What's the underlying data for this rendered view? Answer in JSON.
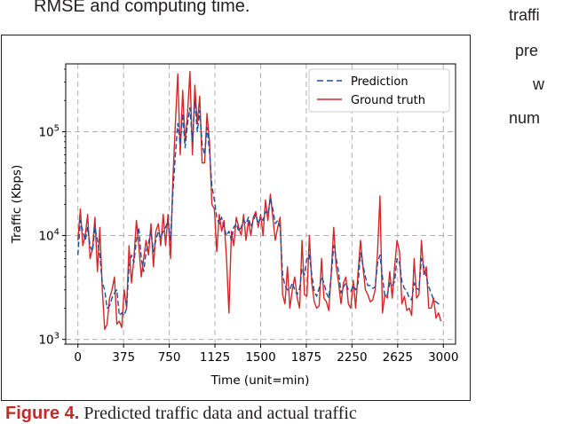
{
  "page": {
    "top_text": "RMSE and computing time.",
    "side_text": [
      "traffi",
      "pre",
      "w",
      "num"
    ],
    "caption_label": "Figure 4.",
    "caption_text": "Predicted traffic data and actual traffic"
  },
  "colors": {
    "prediction": "#1f4e9c",
    "ground_truth": "#d62728",
    "grid": "#b0b0b0",
    "caption_label": "#c42a27"
  },
  "chart_data": {
    "type": "line",
    "xlabel": "Time (unit=min)",
    "ylabel": "Traffic (Kbps)",
    "x_ticks": [
      "0",
      "375",
      "750",
      "1125",
      "1500",
      "1875",
      "2250",
      "2625",
      "3000"
    ],
    "y_ticks": [
      "10^3",
      "10^4",
      "10^5"
    ],
    "xlim": [
      -100,
      3100
    ],
    "ylim": [
      900,
      450000
    ],
    "yscale": "log",
    "grid": true,
    "legend_position": "top-right",
    "series": [
      {
        "name": "Prediction",
        "style": "dashed",
        "x": [
          0,
          20,
          40,
          60,
          80,
          100,
          120,
          140,
          160,
          180,
          200,
          220,
          240,
          260,
          280,
          300,
          320,
          340,
          360,
          380,
          400,
          420,
          440,
          460,
          480,
          500,
          520,
          540,
          560,
          580,
          600,
          620,
          640,
          660,
          680,
          700,
          720,
          740,
          760,
          780,
          800,
          820,
          840,
          860,
          880,
          900,
          920,
          940,
          960,
          980,
          1000,
          1020,
          1040,
          1060,
          1080,
          1100,
          1120,
          1140,
          1160,
          1180,
          1200,
          1220,
          1240,
          1260,
          1280,
          1300,
          1320,
          1340,
          1360,
          1380,
          1400,
          1420,
          1440,
          1460,
          1480,
          1500,
          1520,
          1540,
          1560,
          1580,
          1600,
          1620,
          1640,
          1660,
          1680,
          1700,
          1720,
          1740,
          1760,
          1780,
          1800,
          1820,
          1840,
          1860,
          1880,
          1900,
          1920,
          1940,
          1960,
          1980,
          2000,
          2020,
          2040,
          2060,
          2080,
          2100,
          2120,
          2140,
          2160,
          2180,
          2200,
          2220,
          2240,
          2260,
          2280,
          2300,
          2320,
          2340,
          2360,
          2380,
          2400,
          2420,
          2440,
          2460,
          2480,
          2500,
          2520,
          2540,
          2560,
          2580,
          2600,
          2620,
          2640,
          2660,
          2680,
          2700,
          2720,
          2740,
          2760,
          2780,
          2800,
          2820,
          2840,
          2860,
          2880,
          2900,
          2920,
          2940,
          2960,
          2980
        ],
        "y": [
          6500,
          14000,
          11000,
          9000,
          12000,
          8000,
          7000,
          12000,
          9000,
          6500,
          3500,
          3000,
          2000,
          2100,
          2500,
          2800,
          3000,
          1700,
          1800,
          1700,
          2000,
          5000,
          6500,
          5500,
          9000,
          12000,
          6000,
          4500,
          7000,
          8500,
          11000,
          7000,
          9000,
          11000,
          9500,
          11000,
          12000,
          14000,
          9000,
          26000,
          60000,
          120000,
          75000,
          150000,
          70000,
          120000,
          170000,
          80000,
          200000,
          100000,
          160000,
          75000,
          60000,
          110000,
          65000,
          30000,
          22000,
          15000,
          13000,
          15000,
          12000,
          10000,
          11000,
          9000,
          12000,
          13000,
          11000,
          12000,
          14000,
          13000,
          15000,
          12000,
          14000,
          16000,
          13000,
          15000,
          14000,
          17000,
          16000,
          23000,
          18000,
          13000,
          14000,
          12000,
          4200,
          3300,
          3000,
          3000,
          3500,
          3000,
          2700,
          3100,
          4800,
          4200,
          6000,
          6500,
          4200,
          2900,
          2600,
          3100,
          4000,
          3500,
          2800,
          2500,
          4200,
          8000,
          6000,
          4500,
          2800,
          3200,
          3500,
          3000,
          2900,
          3300,
          3000,
          3500,
          6800,
          5200,
          4000,
          3300,
          3300,
          3100,
          3200,
          5500,
          6500,
          4000,
          2600,
          2700,
          3500,
          3300,
          3600,
          6000,
          5500,
          3600,
          3100,
          2900,
          2500,
          2400,
          3500,
          3100,
          3000,
          6000,
          5000,
          4000,
          3200,
          2800,
          2400,
          2300,
          2200,
          2100
        ],
        "color": "#1f4e9c"
      },
      {
        "name": "Ground truth",
        "style": "solid",
        "x": [
          0,
          20,
          40,
          60,
          80,
          100,
          120,
          140,
          160,
          180,
          200,
          220,
          240,
          260,
          280,
          300,
          320,
          340,
          360,
          380,
          400,
          420,
          440,
          460,
          480,
          500,
          520,
          540,
          560,
          580,
          600,
          620,
          640,
          660,
          680,
          700,
          720,
          740,
          760,
          780,
          800,
          820,
          840,
          860,
          880,
          900,
          920,
          940,
          960,
          980,
          1000,
          1020,
          1040,
          1060,
          1080,
          1100,
          1120,
          1140,
          1160,
          1180,
          1200,
          1220,
          1240,
          1260,
          1280,
          1300,
          1320,
          1340,
          1360,
          1380,
          1400,
          1420,
          1440,
          1460,
          1480,
          1500,
          1520,
          1540,
          1560,
          1580,
          1600,
          1620,
          1640,
          1660,
          1680,
          1700,
          1720,
          1740,
          1760,
          1780,
          1800,
          1820,
          1840,
          1860,
          1880,
          1900,
          1920,
          1940,
          1960,
          1980,
          2000,
          2020,
          2040,
          2060,
          2080,
          2100,
          2120,
          2140,
          2160,
          2180,
          2200,
          2220,
          2240,
          2260,
          2280,
          2300,
          2320,
          2340,
          2360,
          2380,
          2400,
          2420,
          2440,
          2460,
          2480,
          2500,
          2520,
          2540,
          2560,
          2580,
          2600,
          2620,
          2640,
          2660,
          2680,
          2700,
          2720,
          2740,
          2760,
          2780,
          2800,
          2820,
          2840,
          2860,
          2880,
          2900,
          2920,
          2940,
          2960,
          2980
        ],
        "y": [
          9000,
          18000,
          8000,
          10000,
          16000,
          6000,
          7500,
          15000,
          4500,
          12000,
          3000,
          1250,
          1400,
          2500,
          3000,
          4000,
          1400,
          1500,
          1300,
          3000,
          2000,
          8000,
          3500,
          6000,
          14000,
          8000,
          4000,
          6000,
          9000,
          6500,
          13000,
          5000,
          11000,
          13000,
          8000,
          16000,
          8000,
          16000,
          6000,
          35000,
          120000,
          360000,
          60000,
          250000,
          80000,
          150000,
          380000,
          60000,
          280000,
          120000,
          220000,
          50000,
          50000,
          150000,
          80000,
          20000,
          18000,
          7000,
          16000,
          11000,
          14000,
          6000,
          1800,
          11000,
          8000,
          15000,
          12000,
          10000,
          16000,
          9000,
          14000,
          10000,
          15000,
          17000,
          12000,
          16000,
          10000,
          22000,
          14000,
          25000,
          15000,
          9000,
          12000,
          15000,
          2700,
          2200,
          5000,
          2000,
          3000,
          4000,
          2500,
          2000,
          9000,
          2700,
          2600,
          10000,
          3500,
          2300,
          2000,
          2100,
          6000,
          2500,
          2300,
          1900,
          4500,
          12000,
          5000,
          3500,
          2200,
          3500,
          4000,
          2200,
          2000,
          3700,
          2000,
          4500,
          9000,
          5000,
          3000,
          2700,
          2300,
          2400,
          3000,
          7000,
          24000,
          1800,
          2700,
          2500,
          4500,
          2500,
          5000,
          9000,
          7000,
          2200,
          2600,
          1900,
          2000,
          1700,
          6000,
          2500,
          2700,
          9000,
          4200,
          5000,
          2000,
          2000,
          2500,
          1600,
          1800,
          1500
        ],
        "color": "#d62728"
      }
    ]
  }
}
